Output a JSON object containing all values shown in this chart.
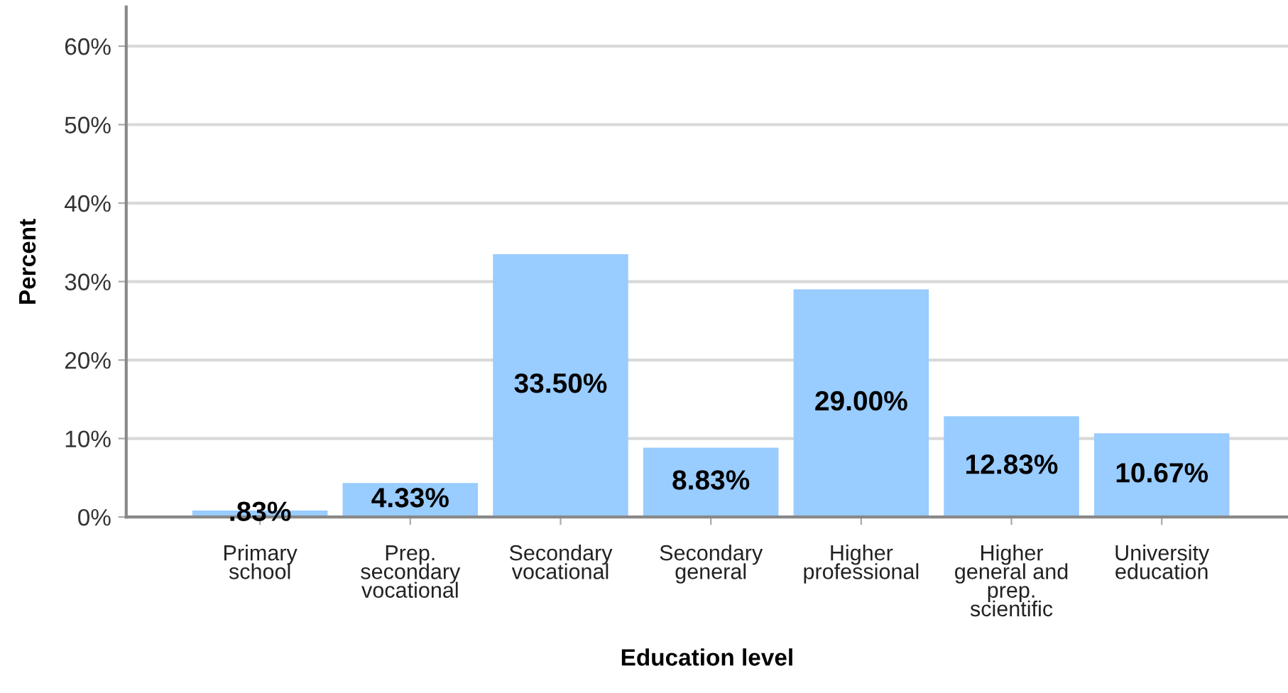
{
  "chart_data": {
    "type": "bar",
    "xlabel": "Education level",
    "ylabel": "Percent",
    "categories": [
      "Primary\nschool",
      "Prep.\nsecondary\nvocational",
      "Secondary\nvocational",
      "Secondary\ngeneral",
      "Higher\nprofessional",
      "Higher\ngeneral and\nprep.\nscientific",
      "University\neducation"
    ],
    "values": [
      0.83,
      4.33,
      33.5,
      8.83,
      29.0,
      12.83,
      10.67
    ],
    "value_labels": [
      ".83%",
      "4.33%",
      "33.50%",
      "8.83%",
      "29.00%",
      "12.83%",
      "10.67%"
    ],
    "color": "#99ccff",
    "ylim": [
      0,
      65
    ],
    "yticks": [
      {
        "value": 0,
        "label": "0%"
      },
      {
        "value": 10,
        "label": "10%"
      },
      {
        "value": 20,
        "label": "20%"
      },
      {
        "value": 30,
        "label": "30%"
      },
      {
        "value": 40,
        "label": "40%"
      },
      {
        "value": 50,
        "label": "50%"
      },
      {
        "value": 60,
        "label": "60%"
      }
    ],
    "grid": "y",
    "legend": false
  }
}
